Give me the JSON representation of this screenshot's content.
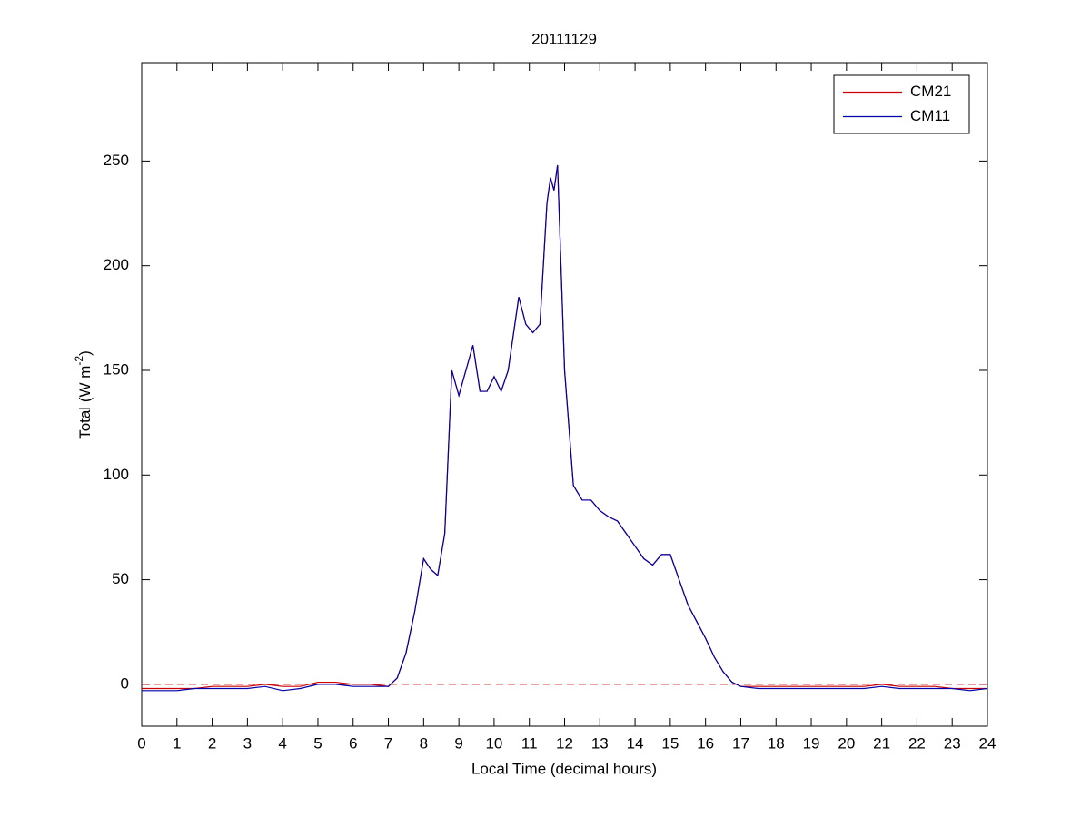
{
  "chart_data": {
    "type": "line",
    "title": "20111129",
    "x_label": "Local Time (decimal hours)",
    "y_label_parts": [
      "Total (W m",
      "-2",
      ")"
    ],
    "x": [
      0,
      0.5,
      1,
      1.5,
      2,
      2.5,
      3,
      3.5,
      4,
      4.5,
      5,
      5.5,
      6,
      6.5,
      7,
      7.25,
      7.5,
      7.75,
      8,
      8.2,
      8.4,
      8.6,
      8.8,
      9,
      9.2,
      9.4,
      9.6,
      9.8,
      10,
      10.2,
      10.4,
      10.7,
      10.9,
      11.1,
      11.3,
      11.5,
      11.6,
      11.7,
      11.8,
      12,
      12.25,
      12.5,
      12.75,
      13,
      13.25,
      13.5,
      13.75,
      14,
      14.25,
      14.5,
      14.75,
      15,
      15.25,
      15.5,
      15.75,
      16,
      16.25,
      16.5,
      16.75,
      17,
      17.5,
      18,
      18.5,
      19,
      19.5,
      20,
      20.5,
      21,
      21.5,
      22,
      22.5,
      23,
      23.5,
      24
    ],
    "series": [
      {
        "name": "CM21",
        "color": "#cc0000",
        "values": [
          -2,
          -2,
          -2,
          -2,
          -1,
          -1,
          -1,
          0,
          -1,
          -1,
          1,
          1,
          0,
          0,
          -1,
          3,
          15,
          35,
          60,
          55,
          52,
          72,
          150,
          138,
          150,
          162,
          140,
          140,
          147,
          140,
          150,
          185,
          172,
          168,
          172,
          230,
          242,
          236,
          248,
          150,
          95,
          88,
          88,
          83,
          80,
          78,
          72,
          66,
          60,
          57,
          62,
          62,
          50,
          38,
          30,
          22,
          13,
          6,
          1,
          -1,
          -1,
          -1,
          -1,
          -1,
          -1,
          -1,
          -1,
          0,
          -1,
          -1,
          -1,
          -2,
          -2,
          -2
        ]
      },
      {
        "name": "CM11",
        "color": "#0000aa",
        "values": [
          -3,
          -3,
          -3,
          -2,
          -2,
          -2,
          -2,
          -1,
          -3,
          -2,
          0,
          0,
          -1,
          -1,
          -1,
          3,
          15,
          35,
          60,
          55,
          52,
          72,
          150,
          138,
          150,
          162,
          140,
          140,
          147,
          140,
          150,
          185,
          172,
          168,
          172,
          230,
          242,
          236,
          248,
          150,
          95,
          88,
          88,
          83,
          80,
          78,
          72,
          66,
          60,
          57,
          62,
          62,
          50,
          38,
          30,
          22,
          13,
          6,
          1,
          -1,
          -2,
          -2,
          -2,
          -2,
          -2,
          -2,
          -2,
          -1,
          -2,
          -2,
          -2,
          -2,
          -3,
          -2
        ]
      }
    ],
    "reference_line": {
      "value": 0,
      "color": "#cc0000",
      "style": "dashed"
    },
    "xlim": [
      0,
      24
    ],
    "xticks": [
      0,
      1,
      2,
      3,
      4,
      5,
      6,
      7,
      8,
      9,
      10,
      11,
      12,
      13,
      14,
      15,
      16,
      17,
      18,
      19,
      20,
      21,
      22,
      23,
      24
    ],
    "ylim": [
      -20,
      297
    ],
    "yticks": [
      0,
      50,
      100,
      150,
      200,
      250
    ],
    "grid": false,
    "legend": "upper right"
  }
}
